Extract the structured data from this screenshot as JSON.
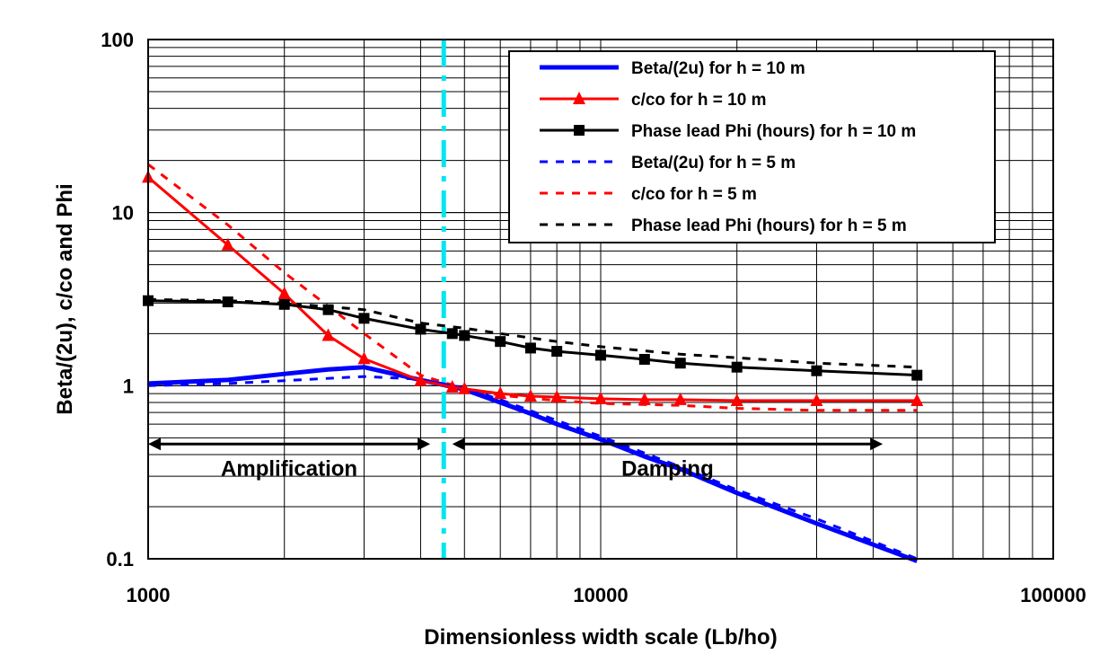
{
  "chart_data": {
    "type": "line",
    "xlabel": "Dimensionless width scale (Lb/ho)",
    "ylabel": "Beta/(2u), c/co and Phi",
    "x_scale": "log",
    "y_scale": "log",
    "xlim": [
      1000,
      100000
    ],
    "ylim": [
      0.1,
      100
    ],
    "x_ticks": [
      "1000",
      "10000",
      "100000"
    ],
    "y_ticks": [
      "0.1",
      "1",
      "10",
      "100"
    ],
    "grid": true,
    "legend_position": "top-right",
    "series": [
      {
        "name": "Beta/(2u)  for h = 10 m",
        "color": "#0000ff",
        "style": "solid",
        "marker": "none",
        "x": [
          1000,
          1500,
          2000,
          2500,
          3000,
          4000,
          5000,
          6000,
          7000,
          8000,
          10000,
          12500,
          15000,
          20000,
          30000,
          50000
        ],
        "y": [
          1.03,
          1.08,
          1.17,
          1.24,
          1.28,
          1.08,
          0.95,
          0.8,
          0.69,
          0.6,
          0.49,
          0.39,
          0.33,
          0.24,
          0.16,
          0.097
        ]
      },
      {
        "name": "c/co  for h = 10 m",
        "color": "#ff0000",
        "style": "solid",
        "marker": "triangle",
        "x": [
          1000,
          1500,
          2000,
          2500,
          3000,
          4000,
          4700,
          5000,
          6000,
          7000,
          8000,
          10000,
          12500,
          15000,
          20000,
          30000,
          50000
        ],
        "y": [
          16,
          6.5,
          3.4,
          1.95,
          1.43,
          1.07,
          0.98,
          0.96,
          0.9,
          0.87,
          0.86,
          0.84,
          0.83,
          0.83,
          0.82,
          0.82,
          0.82
        ]
      },
      {
        "name": "Phase lead Phi (hours) for h = 10 m",
        "color": "#000000",
        "style": "solid",
        "marker": "square",
        "x": [
          1000,
          1500,
          2000,
          2500,
          3000,
          4000,
          4700,
          5000,
          6000,
          7000,
          8000,
          10000,
          12500,
          15000,
          20000,
          30000,
          50000
        ],
        "y": [
          3.1,
          3.05,
          2.95,
          2.75,
          2.45,
          2.12,
          2.0,
          1.95,
          1.8,
          1.65,
          1.58,
          1.5,
          1.42,
          1.35,
          1.28,
          1.22,
          1.15
        ]
      },
      {
        "name": "Beta/(2u) for h = 5 m",
        "color": "#0000ff",
        "style": "dashed",
        "marker": "none",
        "x": [
          1000,
          1500,
          2000,
          3000,
          4000,
          5000,
          6000,
          8000,
          10000,
          15000,
          20000,
          30000,
          50000
        ],
        "y": [
          1.0,
          1.03,
          1.07,
          1.13,
          1.09,
          0.97,
          0.83,
          0.63,
          0.51,
          0.34,
          0.25,
          0.17,
          0.1
        ]
      },
      {
        "name": "c/co for h = 5 m",
        "color": "#ff0000",
        "style": "dashed",
        "marker": "none",
        "x": [
          1000,
          1500,
          2000,
          3000,
          4000,
          5000,
          6000,
          8000,
          10000,
          15000,
          20000,
          30000,
          50000
        ],
        "y": [
          19,
          8.5,
          4.5,
          2.0,
          1.15,
          0.96,
          0.88,
          0.82,
          0.79,
          0.77,
          0.74,
          0.72,
          0.72
        ]
      },
      {
        "name": "Phase lead Phi (hours) for h = 5 m",
        "color": "#000000",
        "style": "dashed",
        "marker": "none",
        "x": [
          1000,
          1500,
          2000,
          3000,
          4000,
          5000,
          6000,
          8000,
          10000,
          15000,
          20000,
          30000,
          50000
        ],
        "y": [
          3.15,
          3.1,
          3.0,
          2.75,
          2.3,
          2.15,
          2.0,
          1.8,
          1.68,
          1.52,
          1.45,
          1.35,
          1.28
        ]
      }
    ],
    "threshold_line": {
      "x": 4500,
      "color": "#00e5ee",
      "style": "dash-dot"
    },
    "regions": [
      {
        "label": "Amplification",
        "x_from": 1000,
        "x_to": 4200,
        "arrow_y": 0.46,
        "label_y": 0.25
      },
      {
        "label": "Damping",
        "x_from": 4700,
        "x_to": 42000,
        "arrow_y": 0.46,
        "label_y": 0.25
      }
    ]
  }
}
